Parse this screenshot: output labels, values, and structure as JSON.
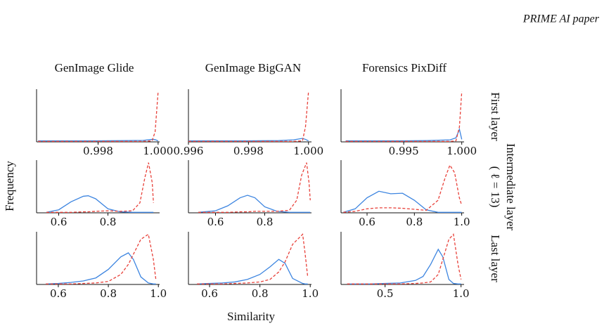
{
  "header": "PRIME AI paper",
  "figure": {
    "column_titles": [
      "GenImage Glide",
      "GenImage BigGAN",
      "Forensics PixDiff"
    ],
    "row_labels": [
      [
        "First layer"
      ],
      [
        "Intermediate layer",
        "( ℓ = 13)"
      ],
      [
        "Last layer"
      ]
    ],
    "xlabel": "Similarity",
    "ylabel": "Frequency"
  },
  "chart_data": [
    {
      "type": "line",
      "xlim": [
        0.99595,
        1.00005
      ],
      "ylim": [
        0,
        1.05
      ],
      "xticks": [
        0.998,
        {
          "value": 1,
          "label": "1.000"
        }
      ],
      "x": [
        0.996,
        0.997,
        0.998,
        0.999,
        0.9995,
        0.9998,
        0.9999,
        1.0
      ],
      "series": [
        {
          "color": "#3d85e0",
          "dash": false,
          "values": [
            0.02,
            0.02,
            0.02,
            0.025,
            0.03,
            0.05,
            0.045,
            0.02
          ]
        },
        {
          "color": "#e8423b",
          "dash": true,
          "values": [
            0.01,
            0.01,
            0.01,
            0.01,
            0.01,
            0.02,
            0.2,
            1.0
          ]
        }
      ]
    },
    {
      "type": "line",
      "xlim": [
        0.996,
        1.0001
      ],
      "ylim": [
        0,
        1.05
      ],
      "xticks": [
        0.996,
        0.998,
        {
          "value": 1,
          "label": "1.000"
        }
      ],
      "x": [
        0.996,
        0.997,
        0.998,
        0.999,
        0.9995,
        0.9998,
        0.9999,
        1.0
      ],
      "series": [
        {
          "color": "#3d85e0",
          "dash": false,
          "values": [
            0.02,
            0.02,
            0.02,
            0.025,
            0.04,
            0.07,
            0.05,
            0.02
          ]
        },
        {
          "color": "#e8423b",
          "dash": true,
          "values": [
            0.01,
            0.01,
            0.01,
            0.01,
            0.01,
            0.02,
            0.3,
            1.0
          ]
        }
      ]
    },
    {
      "type": "line",
      "xlim": [
        0.9896,
        1.0002
      ],
      "ylim": [
        0,
        1.05
      ],
      "xticks": [
        0.995,
        {
          "value": 1,
          "label": "1.000"
        }
      ],
      "x": [
        0.99,
        0.993,
        0.995,
        0.997,
        0.999,
        0.9995,
        0.9998,
        1.0
      ],
      "series": [
        {
          "color": "#3d85e0",
          "dash": false,
          "values": [
            0.02,
            0.02,
            0.02,
            0.025,
            0.04,
            0.08,
            0.25,
            0.05
          ]
        },
        {
          "color": "#e8423b",
          "dash": true,
          "values": [
            0.01,
            0.01,
            0.01,
            0.01,
            0.01,
            0.02,
            0.3,
            1.0
          ]
        }
      ]
    },
    {
      "type": "line",
      "xlim": [
        0.51,
        1.01
      ],
      "ylim": [
        0,
        1.05
      ],
      "xticks": [
        0.6,
        0.8
      ],
      "x": [
        0.55,
        0.6,
        0.65,
        0.7,
        0.72,
        0.75,
        0.8,
        0.85,
        0.9,
        0.93,
        0.95,
        0.965,
        0.98,
        0.985
      ],
      "series": [
        {
          "color": "#3d85e0",
          "dash": false,
          "values": [
            0.01,
            0.06,
            0.22,
            0.33,
            0.34,
            0.28,
            0.08,
            0.02,
            0.01,
            0.01,
            0.01,
            0.01,
            0.01,
            0.01
          ]
        },
        {
          "color": "#e8423b",
          "dash": true,
          "values": [
            0.01,
            0.01,
            0.01,
            0.02,
            0.02,
            0.03,
            0.04,
            0.03,
            0.04,
            0.2,
            0.7,
            1.0,
            0.6,
            0.2
          ]
        }
      ]
    },
    {
      "type": "line",
      "xlim": [
        0.49,
        0.99
      ],
      "ylim": [
        0,
        1.05
      ],
      "xticks": [
        0.6,
        0.8
      ],
      "x": [
        0.53,
        0.6,
        0.65,
        0.7,
        0.73,
        0.76,
        0.8,
        0.85,
        0.9,
        0.93,
        0.95,
        0.97,
        0.98,
        0.985
      ],
      "series": [
        {
          "color": "#3d85e0",
          "dash": false,
          "values": [
            0.01,
            0.04,
            0.14,
            0.3,
            0.35,
            0.3,
            0.12,
            0.03,
            0.01,
            0.01,
            0.01,
            0.01,
            0.01,
            0.01
          ]
        },
        {
          "color": "#e8423b",
          "dash": true,
          "values": [
            0.01,
            0.01,
            0.01,
            0.02,
            0.02,
            0.03,
            0.03,
            0.03,
            0.05,
            0.25,
            0.75,
            1.0,
            0.6,
            0.25
          ]
        }
      ]
    },
    {
      "type": "line",
      "xlim": [
        0.49,
        1.01
      ],
      "ylim": [
        0,
        1.05
      ],
      "xticks": [
        0.6,
        0.8,
        {
          "value": 1,
          "label": "1.0"
        }
      ],
      "x": [
        0.5,
        0.55,
        0.6,
        0.65,
        0.7,
        0.75,
        0.8,
        0.85,
        0.9,
        0.93,
        0.95,
        0.97,
        0.99,
        1.0
      ],
      "series": [
        {
          "color": "#3d85e0",
          "dash": false,
          "values": [
            0.01,
            0.08,
            0.3,
            0.43,
            0.38,
            0.39,
            0.25,
            0.06,
            0.01,
            0.01,
            0.01,
            0.01,
            0.01,
            0.01
          ]
        },
        {
          "color": "#e8423b",
          "dash": true,
          "values": [
            0.01,
            0.03,
            0.08,
            0.1,
            0.1,
            0.09,
            0.07,
            0.05,
            0.25,
            0.7,
            0.95,
            0.8,
            0.3,
            0.15
          ]
        }
      ]
    },
    {
      "type": "line",
      "xlim": [
        0.513,
        1.005
      ],
      "ylim": [
        0,
        1.05
      ],
      "xticks": [
        0.6,
        0.8,
        {
          "value": 1,
          "label": "1.0"
        }
      ],
      "x": [
        0.55,
        0.6,
        0.65,
        0.7,
        0.75,
        0.8,
        0.85,
        0.88,
        0.9,
        0.93,
        0.96,
        0.98,
        0.99
      ],
      "series": [
        {
          "color": "#3d85e0",
          "dash": false,
          "values": [
            0.01,
            0.02,
            0.04,
            0.07,
            0.13,
            0.3,
            0.55,
            0.63,
            0.5,
            0.15,
            0.03,
            0.01,
            0.01
          ]
        },
        {
          "color": "#e8423b",
          "dash": true,
          "values": [
            0.01,
            0.01,
            0.01,
            0.02,
            0.03,
            0.06,
            0.2,
            0.4,
            0.6,
            0.9,
            1.0,
            0.5,
            0.1
          ]
        }
      ]
    },
    {
      "type": "line",
      "xlim": [
        0.516,
        1.005
      ],
      "ylim": [
        0,
        1.05
      ],
      "xticks": [
        0.6,
        0.8,
        {
          "value": 1,
          "label": "1.0"
        }
      ],
      "x": [
        0.55,
        0.6,
        0.65,
        0.7,
        0.75,
        0.8,
        0.84,
        0.875,
        0.9,
        0.93,
        0.97,
        0.98,
        0.99
      ],
      "series": [
        {
          "color": "#3d85e0",
          "dash": false,
          "values": [
            0.01,
            0.02,
            0.03,
            0.05,
            0.1,
            0.2,
            0.35,
            0.5,
            0.42,
            0.12,
            0.02,
            0.01,
            0.01
          ]
        },
        {
          "color": "#e8423b",
          "dash": true,
          "values": [
            0.01,
            0.01,
            0.01,
            0.02,
            0.03,
            0.05,
            0.1,
            0.25,
            0.45,
            0.8,
            1.0,
            0.6,
            0.15
          ]
        }
      ]
    },
    {
      "type": "line",
      "xlim": [
        0.21,
        1.02
      ],
      "ylim": [
        0,
        1.05
      ],
      "xticks": [
        0.5,
        {
          "value": 1,
          "label": "1.0"
        }
      ],
      "x": [
        0.25,
        0.4,
        0.5,
        0.6,
        0.7,
        0.75,
        0.8,
        0.85,
        0.88,
        0.92,
        0.95,
        0.98,
        1.0
      ],
      "series": [
        {
          "color": "#3d85e0",
          "dash": false,
          "values": [
            0.01,
            0.01,
            0.02,
            0.03,
            0.08,
            0.16,
            0.4,
            0.7,
            0.55,
            0.1,
            0.02,
            0.01,
            0.01
          ]
        },
        {
          "color": "#e8423b",
          "dash": true,
          "values": [
            0.01,
            0.01,
            0.01,
            0.01,
            0.02,
            0.03,
            0.05,
            0.2,
            0.5,
            0.9,
            1.0,
            0.4,
            0.1
          ]
        }
      ]
    }
  ]
}
